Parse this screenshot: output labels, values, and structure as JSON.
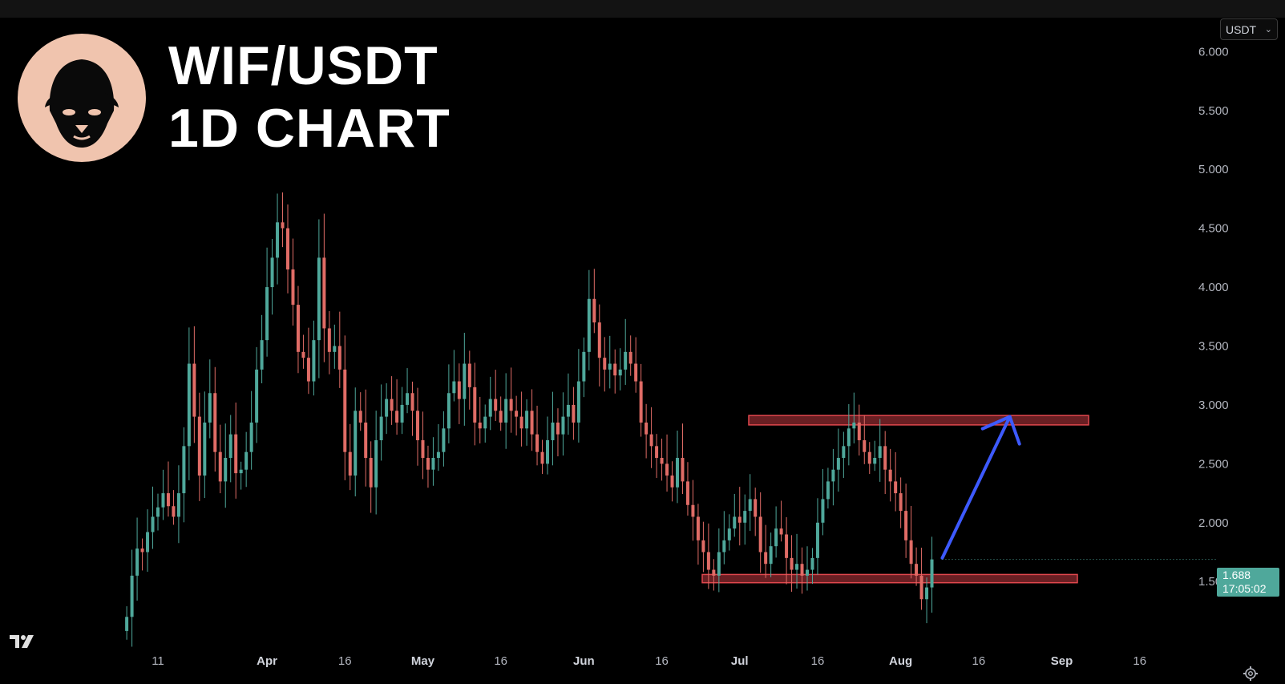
{
  "header": {
    "title_line1": "WIF/USDT",
    "title_line2": "1D CHART",
    "currency": "USDT"
  },
  "price_badge": {
    "price": "1.688",
    "countdown": "17:05:02"
  },
  "colors": {
    "up": "#4fa89b",
    "down": "#e06c66",
    "zone": "#c0393f",
    "arrow": "#3d5afe",
    "logo_bg": "#f0c4ae"
  },
  "chart_data": {
    "type": "candlestick",
    "pair": "WIF/USDT",
    "timeframe": "1D",
    "y_axis": {
      "ticks": [
        "1.500",
        "2.000",
        "2.500",
        "3.000",
        "3.500",
        "4.000",
        "4.500",
        "5.000",
        "5.500",
        "6.000"
      ],
      "range": [
        0.95,
        6.05
      ]
    },
    "x_axis": {
      "ticks": [
        {
          "label": "11",
          "date": "2024-03-11",
          "month": false
        },
        {
          "label": "Apr",
          "date": "2024-04-01",
          "month": true
        },
        {
          "label": "16",
          "date": "2024-04-16",
          "month": false
        },
        {
          "label": "May",
          "date": "2024-05-01",
          "month": true
        },
        {
          "label": "16",
          "date": "2024-05-16",
          "month": false
        },
        {
          "label": "Jun",
          "date": "2024-06-01",
          "month": true
        },
        {
          "label": "16",
          "date": "2024-06-16",
          "month": false
        },
        {
          "label": "Jul",
          "date": "2024-07-01",
          "month": true
        },
        {
          "label": "16",
          "date": "2024-07-16",
          "month": false
        },
        {
          "label": "Aug",
          "date": "2024-08-01",
          "month": true
        },
        {
          "label": "16",
          "date": "2024-08-16",
          "month": false
        },
        {
          "label": "Sep",
          "date": "2024-09-01",
          "month": true
        },
        {
          "label": "16",
          "date": "2024-09-16",
          "month": false
        }
      ]
    },
    "last_price": 1.688,
    "close_series": {
      "start_date": "2024-03-05",
      "values": [
        1.2,
        1.55,
        1.78,
        1.75,
        1.92,
        2.05,
        2.13,
        2.25,
        2.14,
        2.05,
        2.25,
        2.65,
        3.35,
        2.9,
        2.4,
        2.85,
        3.1,
        2.6,
        2.35,
        2.55,
        2.75,
        2.42,
        2.45,
        2.6,
        2.85,
        3.3,
        3.55,
        4.0,
        4.25,
        4.55,
        4.5,
        4.15,
        3.85,
        3.45,
        3.4,
        3.2,
        3.55,
        4.25,
        3.65,
        3.45,
        3.5,
        3.3,
        2.6,
        2.4,
        2.95,
        2.85,
        2.55,
        2.3,
        2.7,
        2.9,
        3.05,
        2.95,
        2.85,
        3.0,
        3.1,
        2.95,
        2.7,
        2.55,
        2.45,
        2.55,
        2.6,
        2.8,
        3.1,
        3.2,
        3.05,
        3.35,
        3.15,
        2.85,
        2.8,
        2.9,
        3.05,
        2.95,
        2.85,
        3.05,
        2.95,
        2.9,
        2.8,
        2.95,
        2.75,
        2.6,
        2.5,
        2.7,
        2.85,
        2.75,
        2.9,
        3.0,
        2.85,
        3.2,
        3.45,
        3.9,
        3.7,
        3.4,
        3.3,
        3.35,
        3.25,
        3.3,
        3.45,
        3.35,
        3.2,
        2.85,
        2.75,
        2.65,
        2.55,
        2.5,
        2.4,
        2.3,
        2.55,
        2.35,
        2.15,
        2.05,
        1.85,
        1.75,
        1.6,
        1.55,
        1.75,
        1.85,
        1.95,
        2.05,
        2.0,
        2.1,
        2.2,
        2.05,
        1.75,
        1.65,
        1.8,
        1.95,
        1.9,
        1.7,
        1.6,
        1.65,
        1.55,
        1.6,
        1.7,
        2.0,
        2.2,
        2.35,
        2.45,
        2.55,
        2.65,
        2.8,
        2.85,
        2.7,
        2.6,
        2.5,
        2.55,
        2.65,
        2.45,
        2.35,
        2.25,
        2.1,
        1.85,
        1.65,
        1.55,
        1.35,
        1.45,
        1.688
      ]
    },
    "annotations": {
      "resistance_zone": [
        2.83,
        2.91
      ],
      "support_zone": [
        1.49,
        1.56
      ],
      "arrow": {
        "from": {
          "date": "2024-08-09",
          "price": 1.7
        },
        "to": {
          "date": "2024-08-22",
          "price": 2.9
        }
      }
    }
  }
}
